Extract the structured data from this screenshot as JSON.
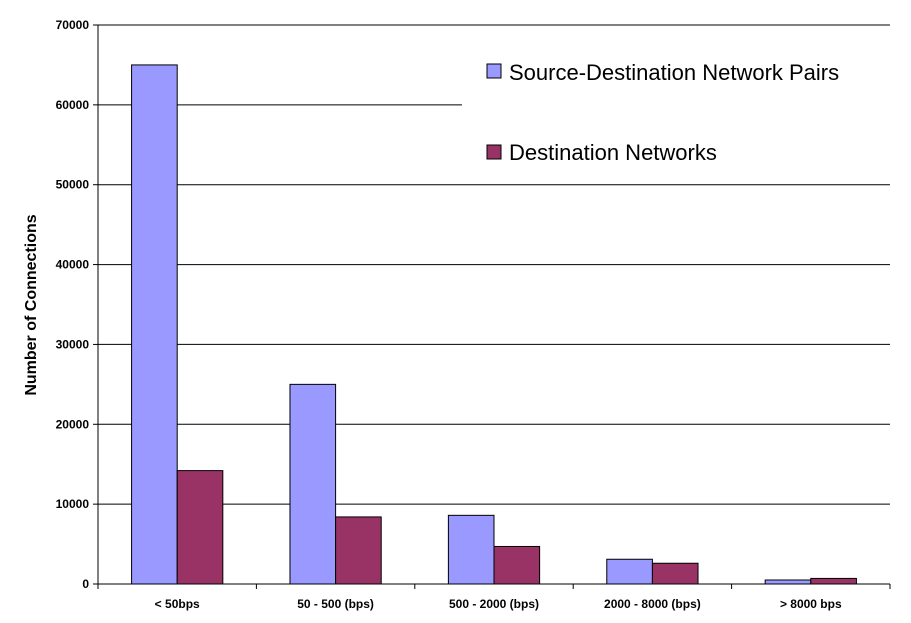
{
  "chart_data": {
    "type": "bar",
    "categories": [
      "< 50bps",
      "50 - 500 (bps)",
      "500 - 2000 (bps)",
      "2000 - 8000 (bps)",
      "> 8000 bps"
    ],
    "series": [
      {
        "name": "Source-Destination Network Pairs",
        "color": "#9999ff",
        "values": [
          65000,
          25000,
          8600,
          3100,
          500
        ]
      },
      {
        "name": "Destination Networks",
        "color": "#993366",
        "values": [
          14200,
          8400,
          4700,
          2600,
          700
        ]
      }
    ],
    "title": "",
    "xlabel": "",
    "ylabel": "Number of Connections",
    "ylim": [
      0,
      70000
    ],
    "yticks": [
      0,
      10000,
      20000,
      30000,
      40000,
      50000,
      60000,
      70000
    ],
    "grid": true,
    "legend_position": "top-right"
  }
}
